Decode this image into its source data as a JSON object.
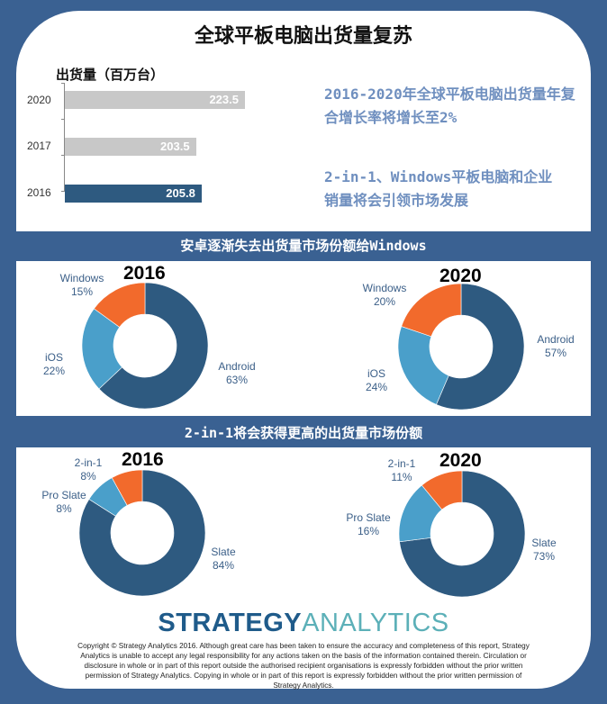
{
  "title": "全球平板电脑出货量复苏",
  "colors": {
    "frame": "#3a6192",
    "dark": "#2e5a80",
    "light": "#4a9fca",
    "orange": "#f26a2c",
    "gray": "#c8c8c8"
  },
  "chart_data": [
    {
      "type": "bar",
      "title": "出货量（百万台）",
      "orientation": "horizontal",
      "categories": [
        "2020",
        "2017",
        "2016"
      ],
      "values": [
        223.5,
        203.5,
        205.8
      ],
      "value_labels": [
        "223.5",
        "203.5",
        "205.8"
      ]
    },
    {
      "type": "pie",
      "variant": "donut",
      "section": "安卓逐渐失去出货量市场份额给Windows",
      "title": "2016",
      "labels": [
        "Android",
        "iOS",
        "Windows"
      ],
      "values": [
        63,
        22,
        15
      ],
      "value_labels": [
        "63%",
        "22%",
        "15%"
      ]
    },
    {
      "type": "pie",
      "variant": "donut",
      "section": "安卓逐渐失去出货量市场份额给Windows",
      "title": "2020",
      "labels": [
        "Android",
        "iOS",
        "Windows"
      ],
      "values": [
        57,
        24,
        20
      ],
      "value_labels": [
        "57%",
        "24%",
        "20%"
      ]
    },
    {
      "type": "pie",
      "variant": "donut",
      "section": "2-in-1将会获得更高的出货量市场份额",
      "title": "2016",
      "labels": [
        "Slate",
        "Pro Slate",
        "2-in-1"
      ],
      "values": [
        84,
        8,
        8
      ],
      "value_labels": [
        "84%",
        "8%",
        "8%"
      ]
    },
    {
      "type": "pie",
      "variant": "donut",
      "section": "2-in-1将会获得更高的出货量市场份额",
      "title": "2020",
      "labels": [
        "Slate",
        "Pro Slate",
        "2-in-1"
      ],
      "values": [
        73,
        16,
        11
      ],
      "value_labels": [
        "73%",
        "16%",
        "11%"
      ]
    }
  ],
  "notes": [
    "2016-2020年全球平板电脑出货量年复合增长率将增长至2%",
    "2-in-1、Windows平板电脑和企业销量将会引领市场发展"
  ],
  "sections": [
    "安卓逐渐失去出货量市场份额给Windows",
    "2-in-1将会获得更高的出货量市场份额"
  ],
  "logo": {
    "part1": "STRATEGY",
    "part2": "ANALYTICS"
  },
  "copyright": "Copyright © Strategy Analytics 2016. Although great care has been taken to ensure the accuracy and completeness of this report, Strategy Analytics is unable to accept any legal responsibility for any actions taken on the basis of the information contained therein. Circulation or disclosure in whole or in part of this report outside the authorised recipient organisations is expressly forbidden without the prior written permission of Strategy Analytics. Copying in whole or in part of this report is expressly forbidden without the prior written permission of Strategy Analytics."
}
